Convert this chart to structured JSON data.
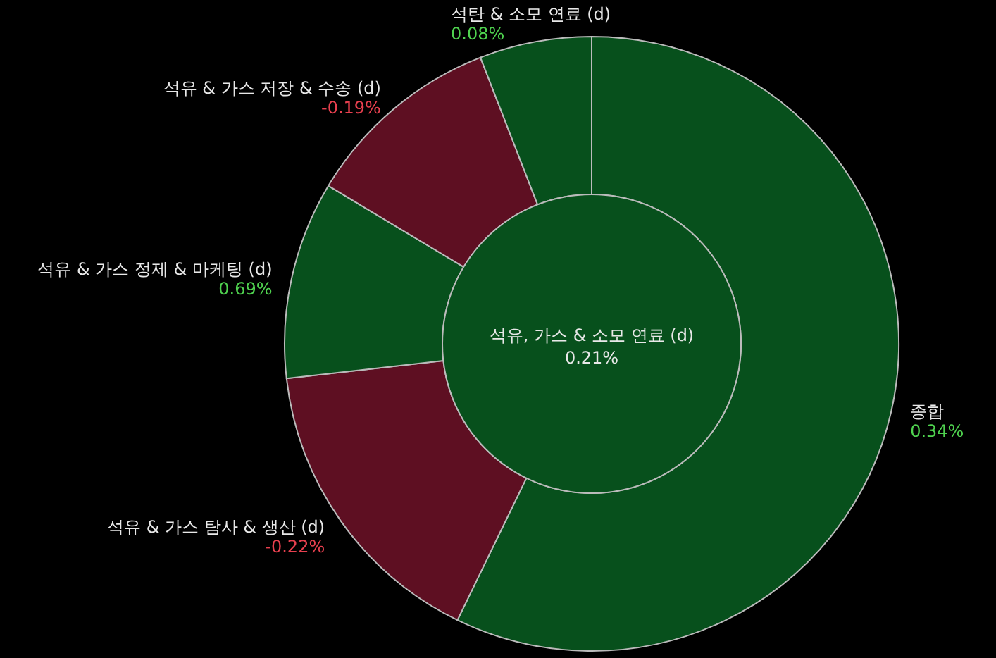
{
  "chart_data": {
    "type": "donut",
    "title": "석유, 가스 & 소모 연료 (d)",
    "subtitle": "0.21%",
    "categories": [
      "종합",
      "석유 & 가스 탐사 & 생산 (d)",
      "석유 & 가스 정제 & 마케팅 (d)",
      "석유 & 가스 저장 & 수송 (d)",
      "석탄 & 소모 연료 (d)"
    ],
    "values": [
      57.2,
      16,
      10.4,
      10.5,
      5.9
    ],
    "colors": [
      "#07501c",
      "#5e0f22",
      "#07501c",
      "#5e0f22",
      "#07501c"
    ],
    "annotations": [
      {
        "text": "0.34%",
        "x": "종합"
      },
      {
        "text": "-0.22%",
        "x": "석유 & 가스 탐사 & 생산 (d)"
      },
      {
        "text": "0.69%",
        "x": "석유 & 가스 정제 & 마케팅 (d)"
      },
      {
        "text": "-0.19%",
        "x": "석유 & 가스 저장 & 수송 (d)"
      },
      {
        "text": "0.08%",
        "x": "석탄 & 소모 연료 (d)"
      }
    ]
  }
}
